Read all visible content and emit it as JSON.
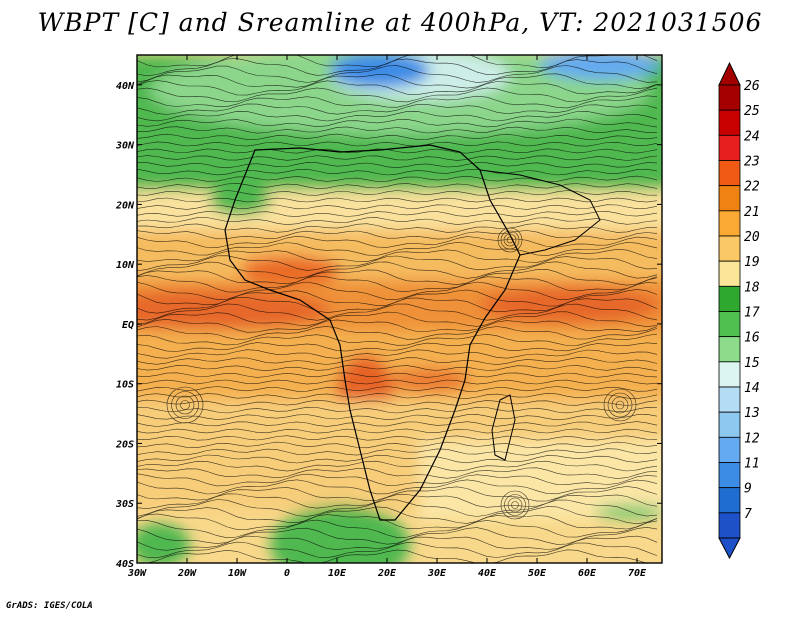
{
  "title": "WBPT [C] and Sreamline at 400hPa, VT: 2021031506",
  "credit": "GrADS: IGES/COLA",
  "map": {
    "lon_labels": [
      "30W",
      "20W",
      "10W",
      "0",
      "10E",
      "20E",
      "30E",
      "40E",
      "50E",
      "60E",
      "70E"
    ],
    "lon_values": [
      -30,
      -20,
      -10,
      0,
      10,
      20,
      30,
      40,
      50,
      60,
      70
    ],
    "lat_labels": [
      "40N",
      "30N",
      "20N",
      "10N",
      "EQ",
      "10S",
      "20S",
      "30S",
      "40S"
    ],
    "lat_values": [
      40,
      30,
      20,
      10,
      0,
      -10,
      -20,
      -30,
      -40
    ],
    "lon_range": [
      -30,
      75
    ],
    "lat_range": [
      -40,
      45
    ]
  },
  "colorbar": {
    "labels": [
      "26",
      "25",
      "24",
      "23",
      "22",
      "21",
      "20",
      "19",
      "18",
      "17",
      "16",
      "15",
      "14",
      "13",
      "12",
      "11",
      "9",
      "7"
    ],
    "colors": [
      "#a40000",
      "#c80000",
      "#e61e1e",
      "#f05a14",
      "#f08214",
      "#faaa32",
      "#fac864",
      "#fae696",
      "#2ea82e",
      "#50c050",
      "#8cdc8c",
      "#dcf5f0",
      "#b4dcf5",
      "#8cc8f0",
      "#64aaf0",
      "#3c8ce6",
      "#1e6ed2",
      "#1e50c8"
    ],
    "top_color": "#a40000",
    "bottom_color": "#1e50c8"
  }
}
